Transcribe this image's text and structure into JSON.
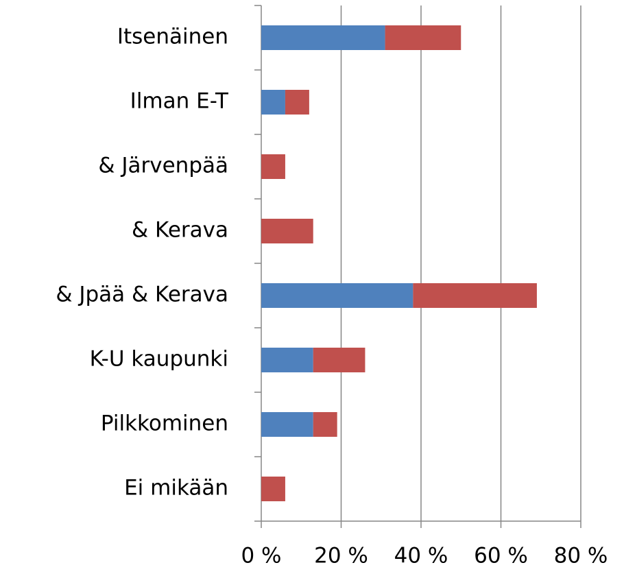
{
  "chart_data": {
    "type": "stacked-barh",
    "categories": [
      "Itsenäinen",
      "Ilman E-T",
      "& Järvenpää",
      "& Kerava",
      "& Jpää & Kerava",
      "K-U kaupunki",
      "Pilkkominen",
      "Ei mikään"
    ],
    "series": [
      {
        "color": "#4f81bd",
        "values": [
          31,
          6,
          0,
          0,
          38,
          13,
          13,
          0
        ]
      },
      {
        "color": "#c0504d",
        "values": [
          19,
          6,
          6,
          13,
          31,
          13,
          6,
          6
        ]
      }
    ],
    "xlim": [
      0,
      80
    ],
    "xticks": [
      {
        "value": 0,
        "label": "0 %"
      },
      {
        "value": 20,
        "label": "20 %"
      },
      {
        "value": 40,
        "label": "40 %"
      },
      {
        "value": 60,
        "label": "60 %"
      },
      {
        "value": 80,
        "label": "80 %"
      }
    ],
    "grid": true
  }
}
